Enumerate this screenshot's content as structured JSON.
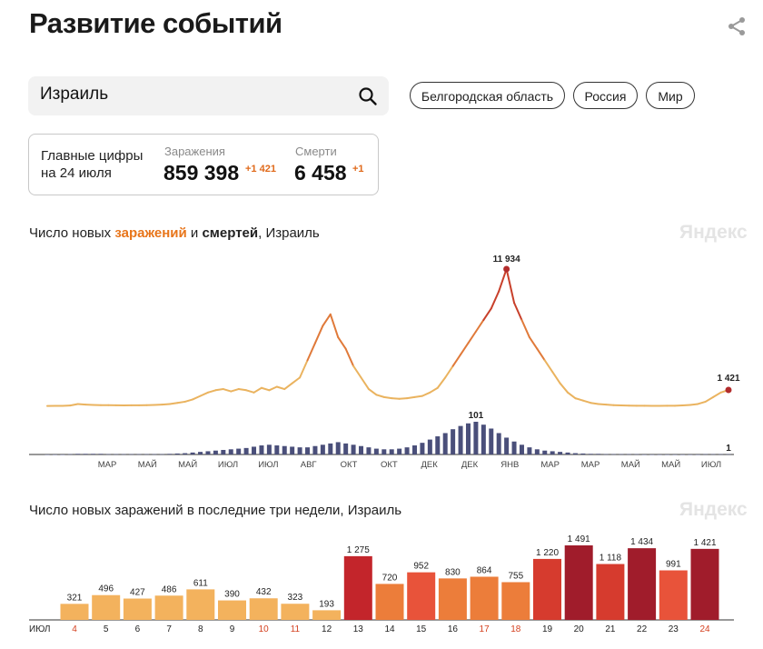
{
  "page_title": "Развитие событий",
  "search": {
    "value": "Израиль"
  },
  "chips": [
    "Белгородская область",
    "Россия",
    "Мир"
  ],
  "stats": {
    "label_line1": "Главные цифры",
    "label_line2": "на 24 июля",
    "infections_label": "Заражения",
    "infections_value": "859 398",
    "infections_delta": "+1 421",
    "deaths_label": "Смерти",
    "deaths_value": "6 458",
    "deaths_delta": "+1"
  },
  "chart1": {
    "title_part1": "Число новых ",
    "title_part2": "заражений",
    "title_part3": " и ",
    "title_part4": "смертей",
    "title_part5": ", Израиль",
    "watermark": "Яндекс"
  },
  "chart2": {
    "title": "Число новых заражений в последние три недели, Израиль",
    "watermark": "Яндекс"
  },
  "colors": {
    "accent": "#e8751a",
    "deaths": "#4a4f7a",
    "light": "#f3b25d",
    "mid": "#ec7d3a",
    "dark": "#c3252b",
    "darkest": "#a01c2b"
  },
  "chart_data": [
    {
      "type": "line",
      "series": [
        {
          "name": "заражений",
          "values": [
            30,
            35,
            40,
            70,
            200,
            150,
            120,
            100,
            95,
            90,
            80,
            85,
            90,
            100,
            120,
            150,
            200,
            300,
            400,
            600,
            900,
            1200,
            1400,
            1500,
            1300,
            1500,
            1400,
            1200,
            1600,
            1400,
            1700,
            1500,
            2000,
            2500,
            4000,
            5500,
            7000,
            8000,
            6000,
            5000,
            3500,
            2500,
            1500,
            1000,
            800,
            700,
            650,
            700,
            800,
            900,
            1200,
            1600,
            2500,
            3500,
            4500,
            5500,
            6500,
            7500,
            8500,
            10000,
            11934,
            9000,
            7500,
            6000,
            5000,
            4000,
            3000,
            2000,
            1200,
            700,
            500,
            300,
            200,
            150,
            100,
            80,
            60,
            50,
            45,
            40,
            40,
            45,
            50,
            80,
            120,
            200,
            400,
            800,
            1200,
            1421
          ]
        },
        {
          "name": "смертей",
          "values": [
            0,
            0,
            0,
            1,
            2,
            2,
            2,
            2,
            1,
            1,
            1,
            1,
            1,
            1,
            1,
            1,
            2,
            3,
            4,
            6,
            8,
            10,
            12,
            14,
            16,
            18,
            20,
            24,
            28,
            30,
            28,
            26,
            24,
            22,
            22,
            26,
            30,
            34,
            38,
            34,
            30,
            26,
            22,
            18,
            16,
            16,
            18,
            22,
            28,
            36,
            46,
            56,
            66,
            78,
            88,
            96,
            101,
            92,
            80,
            66,
            52,
            40,
            30,
            22,
            16,
            12,
            10,
            8,
            6,
            4,
            3,
            2,
            2,
            1,
            1,
            1,
            1,
            1,
            0,
            0,
            0,
            0,
            0,
            0,
            0,
            0,
            1,
            1,
            1,
            1
          ]
        }
      ],
      "x_ticks": [
        "МАР",
        "МАЙ",
        "МАЙ",
        "ИЮЛ",
        "ИЮЛ",
        "АВГ",
        "ОКТ",
        "ОКТ",
        "ДЕК",
        "ДЕК",
        "ЯНВ",
        "МАР",
        "МАР",
        "МАЙ",
        "МАЙ",
        "ИЮЛ"
      ],
      "annotations": [
        {
          "label": "11 934",
          "value": 11934
        },
        {
          "label": "1 421",
          "value": 1421
        },
        {
          "label": "101",
          "value": 101
        },
        {
          "label": "1",
          "value": 1
        }
      ]
    },
    {
      "type": "bar",
      "x_prefix": "ИЮЛ",
      "categories": [
        "4",
        "5",
        "6",
        "7",
        "8",
        "9",
        "10",
        "11",
        "12",
        "13",
        "14",
        "15",
        "16",
        "17",
        "18",
        "19",
        "20",
        "21",
        "22",
        "23",
        "24"
      ],
      "weekend": [
        true,
        false,
        false,
        false,
        false,
        false,
        true,
        true,
        false,
        false,
        false,
        false,
        false,
        true,
        true,
        false,
        false,
        false,
        false,
        false,
        true
      ],
      "values": [
        321,
        496,
        427,
        486,
        611,
        390,
        432,
        323,
        193,
        1275,
        720,
        952,
        830,
        864,
        755,
        1220,
        1491,
        1118,
        1434,
        991,
        1421
      ],
      "labels": [
        "321",
        "496",
        "427",
        "486",
        "611",
        "390",
        "432",
        "323",
        "193",
        "1 275",
        "720",
        "952",
        "830",
        "864",
        "755",
        "1 220",
        "1 491",
        "1 118",
        "1 434",
        "991",
        "1 421"
      ],
      "colors": [
        "#f3b25d",
        "#f3b25d",
        "#f3b25d",
        "#f3b25d",
        "#f3b25d",
        "#f3b25d",
        "#f3b25d",
        "#f3b25d",
        "#f3b25d",
        "#c3252b",
        "#ec7d3a",
        "#e8533a",
        "#ec7d3a",
        "#ec7d3a",
        "#ec7d3a",
        "#d63b2e",
        "#a01c2b",
        "#d63b2e",
        "#a01c2b",
        "#e8533a",
        "#a01c2b"
      ]
    }
  ]
}
